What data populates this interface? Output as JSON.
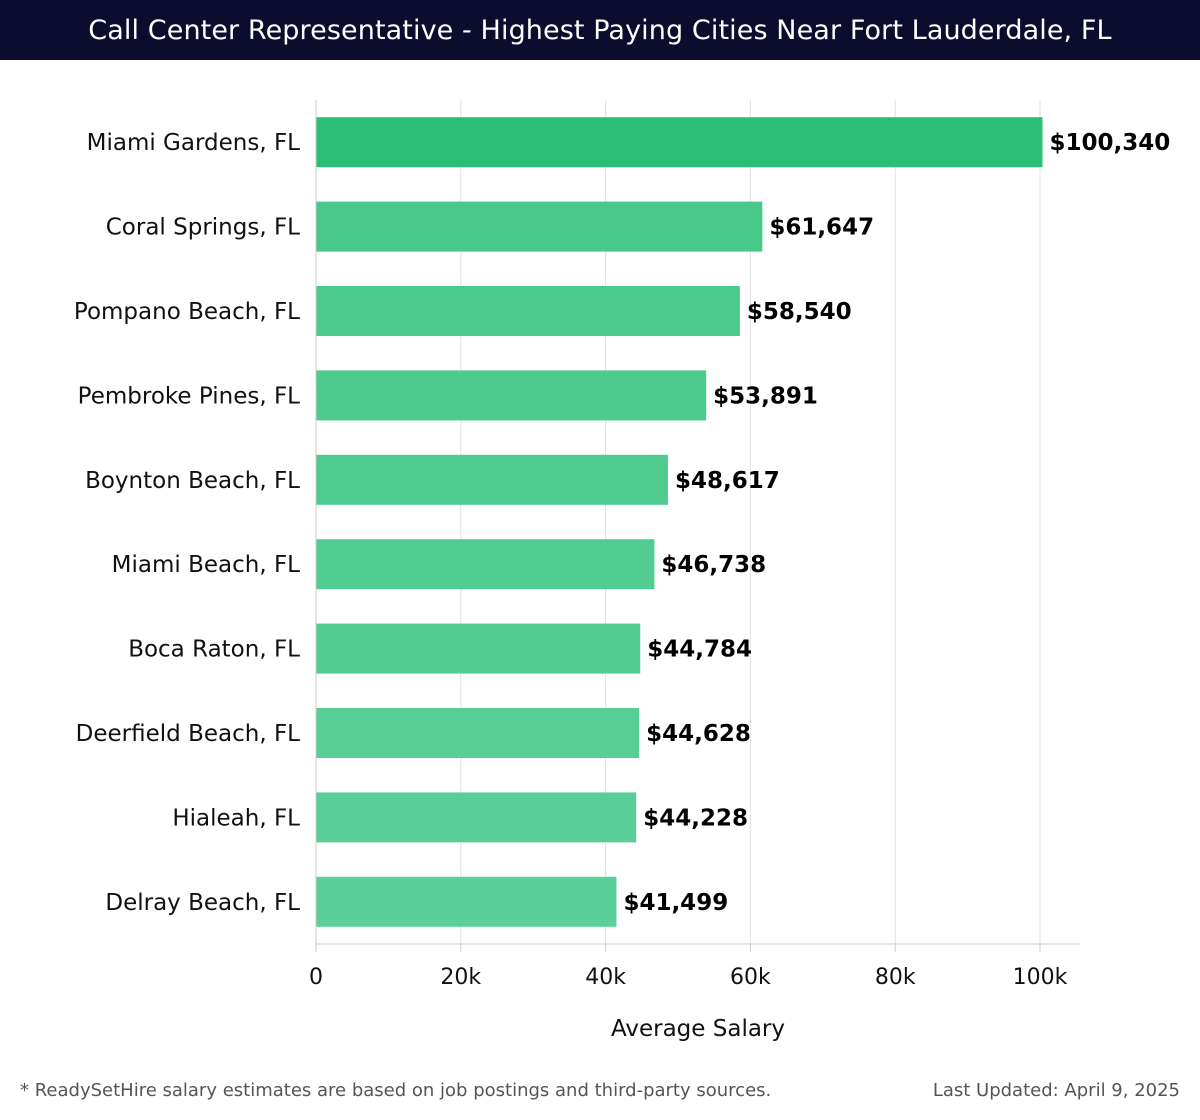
{
  "header": {
    "title": "Call Center Representative - Highest Paying Cities Near Fort Lauderdale, FL"
  },
  "chart_data": {
    "type": "bar",
    "orientation": "horizontal",
    "title": "Call Center Representative - Highest Paying Cities Near Fort Lauderdale, FL",
    "xlabel": "Average Salary",
    "ylabel": "",
    "xlim": [
      0,
      105000
    ],
    "x_ticks": [
      0,
      20000,
      40000,
      60000,
      80000,
      100000
    ],
    "x_tick_labels": [
      "0",
      "20k",
      "40k",
      "60k",
      "80k",
      "100k"
    ],
    "grid": true,
    "categories": [
      "Miami Gardens, FL",
      "Coral Springs, FL",
      "Pompano Beach, FL",
      "Pembroke Pines, FL",
      "Boynton Beach, FL",
      "Miami Beach, FL",
      "Boca Raton, FL",
      "Deerfield Beach, FL",
      "Hialeah, FL",
      "Delray Beach, FL"
    ],
    "values": [
      100340,
      61647,
      58540,
      53891,
      48617,
      46738,
      44784,
      44628,
      44228,
      41499
    ],
    "value_labels": [
      "$100,340",
      "$61,647",
      "$58,540",
      "$53,891",
      "$48,617",
      "$46,738",
      "$44,784",
      "$44,628",
      "$44,228",
      "$41,499"
    ],
    "colors": {
      "highlight": "#2bbf76",
      "bar_top": "#48c98a",
      "bar_bottom": "#5acf9a",
      "grid": "#e2e2e2",
      "axis": "#cccccc"
    }
  },
  "footer": {
    "note": "* ReadySetHire salary estimates are based on job postings and third-party sources.",
    "updated": "Last Updated: April 9, 2025"
  }
}
